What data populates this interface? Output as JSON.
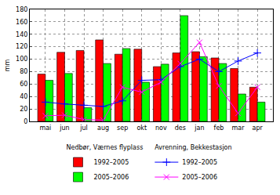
{
  "chart_data": {
    "type": "bar",
    "y_label": "mm",
    "categories": [
      "mai",
      "jun",
      "jul",
      "aug",
      "sep",
      "okt",
      "nov",
      "des",
      "jan",
      "feb",
      "mar",
      "apr"
    ],
    "series": [
      {
        "name": "1992–2005",
        "group": "Nedbør, Værnes flyplass",
        "type": "bar",
        "color": "#ff0000",
        "values": [
          76,
          111,
          114,
          131,
          108,
          116,
          88,
          110,
          112,
          102,
          85,
          55
        ]
      },
      {
        "name": "2005–2006",
        "group": "Nedbør, Værnes flyplass",
        "type": "bar",
        "color": "#00ff00",
        "values": [
          66,
          77,
          22,
          93,
          117,
          63,
          92,
          170,
          104,
          93,
          44,
          31
        ]
      },
      {
        "name": "1992–2005",
        "group": "Avrenning, Bekkestasjon",
        "type": "line",
        "color": "#0000ff",
        "marker": "cross",
        "values": [
          31,
          28,
          26,
          24,
          33,
          66,
          67,
          88,
          100,
          80,
          97,
          110
        ]
      },
      {
        "name": "2005–2006",
        "group": "Avrenning, Bekkestasjon",
        "type": "line",
        "color": "#ff00ff",
        "marker": "x",
        "values": [
          9,
          10,
          3,
          2,
          55,
          47,
          63,
          93,
          127,
          57,
          13,
          55
        ]
      }
    ],
    "ylim": [
      0,
      180
    ],
    "yticks": [
      0,
      20,
      40,
      60,
      80,
      100,
      120,
      140,
      160,
      180
    ],
    "grid": true,
    "legend": "bottom"
  }
}
